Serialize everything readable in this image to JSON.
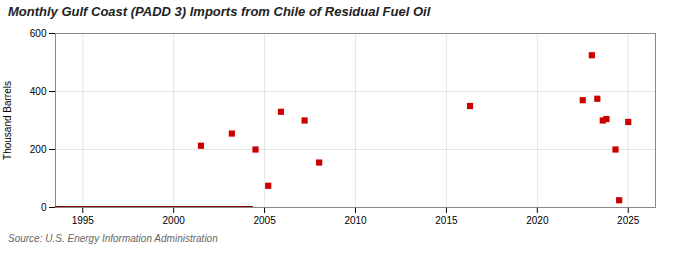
{
  "chart_data": {
    "type": "scatter",
    "title": "Monthly Gulf Coast (PADD 3) Imports from Chile of Residual Fuel Oil",
    "ylabel": "Thousand Barrels",
    "source": "Source: U.S. Energy Information Administration",
    "series": [
      {
        "type": "line",
        "color": "#8b0000",
        "x": [
          1993.5,
          2004.3
        ],
        "values": [
          0,
          0
        ]
      },
      {
        "type": "scatter",
        "color": "#cc0000",
        "marker": "square",
        "x": [
          2001.5,
          2003.2,
          2004.5,
          2005.2,
          2005.9,
          2007.2,
          2008.0,
          2016.3,
          2022.5,
          2023.0,
          2023.3,
          2023.6,
          2023.8,
          2024.3,
          2024.5,
          2025.0
        ],
        "values": [
          213,
          255,
          200,
          75,
          330,
          300,
          155,
          350,
          370,
          525,
          375,
          300,
          305,
          200,
          25,
          295
        ]
      }
    ],
    "xlim": [
      1993.5,
      2026.5
    ],
    "xticks": [
      1995,
      2000,
      2005,
      2010,
      2015,
      2020,
      2025
    ],
    "ylim": [
      0,
      600
    ],
    "yticks": [
      0,
      200,
      400,
      600
    ],
    "grid": true
  }
}
